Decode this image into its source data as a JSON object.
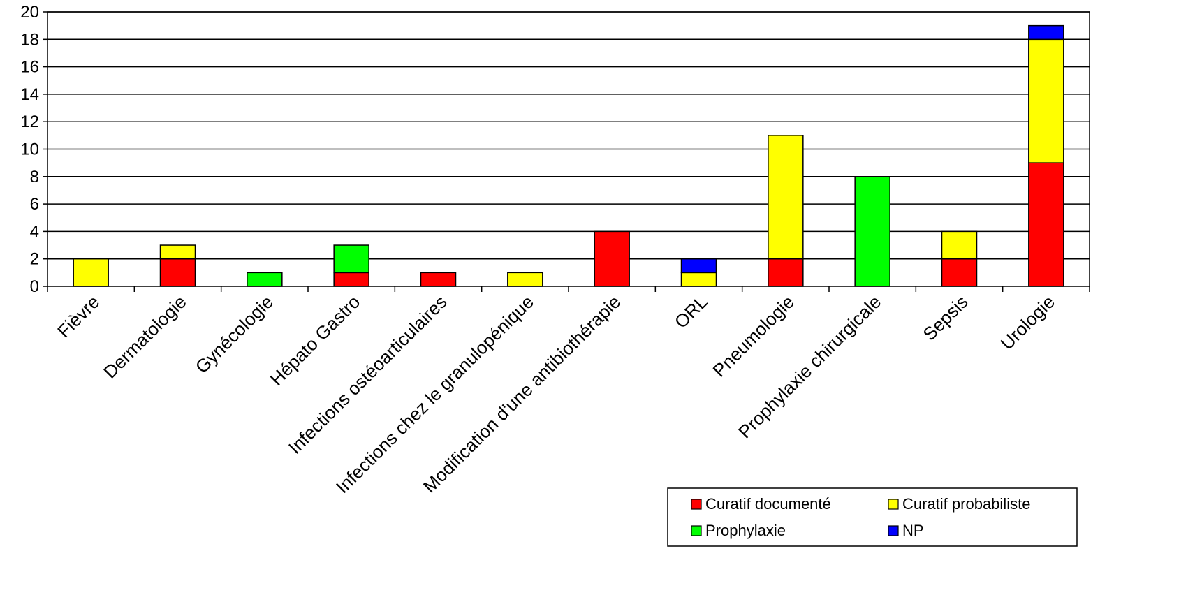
{
  "chart_data": {
    "type": "bar",
    "stacked": true,
    "categories": [
      "Fièvre",
      "Dermatologie",
      "Gynécologie",
      "Hépato Gastro",
      "Infections ostéoarticulaires",
      "Infections chez le granulopénique",
      "Modification d'une antibiothérapie",
      "ORL",
      "Pneumologie",
      "Prophylaxie chirurgicale",
      "Sepsis",
      "Urologie"
    ],
    "series": [
      {
        "name": "Curatif documenté",
        "color": "#ff0000",
        "values": [
          0,
          2,
          0,
          1,
          1,
          0,
          4,
          0,
          2,
          0,
          2,
          9
        ]
      },
      {
        "name": "Curatif probabiliste",
        "color": "#ffff00",
        "values": [
          2,
          1,
          0,
          0,
          0,
          1,
          0,
          1,
          9,
          0,
          2,
          9
        ]
      },
      {
        "name": "Prophylaxie",
        "color": "#00ff00",
        "values": [
          0,
          0,
          1,
          2,
          0,
          0,
          0,
          0,
          0,
          8,
          0,
          0
        ]
      },
      {
        "name": "NP",
        "color": "#0000ff",
        "values": [
          0,
          0,
          0,
          0,
          0,
          0,
          0,
          1,
          0,
          0,
          0,
          1
        ]
      }
    ],
    "ylim": [
      0,
      20
    ],
    "yticks": [
      0,
      2,
      4,
      6,
      8,
      10,
      12,
      14,
      16,
      18,
      20
    ],
    "grid": true,
    "legend_position": "bottom-right",
    "title": "",
    "xlabel": "",
    "ylabel": ""
  }
}
